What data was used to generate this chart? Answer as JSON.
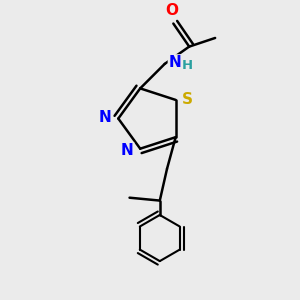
{
  "bg_color": "#ebebeb",
  "atom_colors": {
    "C": "#000000",
    "N": "#0000ff",
    "O": "#ff0000",
    "S": "#ccaa00",
    "H": "#2aa0a0"
  },
  "bond_color": "#000000",
  "bond_width": 1.8,
  "figsize": [
    3.0,
    3.0
  ],
  "dpi": 100,
  "xlim": [
    0,
    10
  ],
  "ylim": [
    0,
    10
  ]
}
